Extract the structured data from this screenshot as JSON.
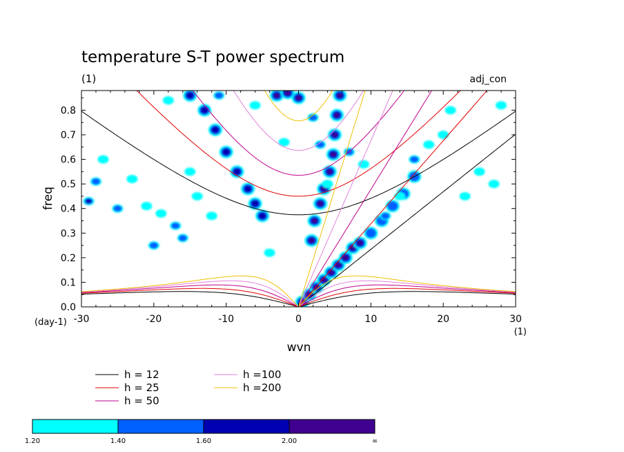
{
  "chart_data": {
    "type": "contour",
    "title": "temperature S-T power spectrum",
    "subtitle_left": "(1)",
    "subtitle_right": "adj_con",
    "xlabel": "wvn",
    "ylabel": "freq",
    "x_unit": "(1)",
    "y_unit": "(day-1)",
    "xlim": [
      -30,
      30
    ],
    "ylim": [
      0.0,
      0.88
    ],
    "xticks": [
      -30,
      -20,
      -10,
      0,
      10,
      20,
      30
    ],
    "xtick_labels": [
      "-30",
      "-20",
      "-10",
      "0",
      "10",
      "20",
      "30"
    ],
    "yticks": [
      0.0,
      0.1,
      0.2,
      0.3,
      0.4,
      0.5,
      0.6,
      0.7,
      0.8
    ],
    "ytick_labels": [
      "0.0",
      "0.1",
      "0.2",
      "0.3",
      "0.4",
      "0.5",
      "0.6",
      "0.7",
      "0.8"
    ],
    "dispersion_curves": [
      {
        "label": "h = 12",
        "color": "#000000",
        "h": 12
      },
      {
        "label": "h = 25",
        "color": "#e00000",
        "h": 25
      },
      {
        "label": "h = 50",
        "color": "#c0008c",
        "h": 50
      },
      {
        "label": "h =100",
        "color": "#e080d8",
        "h": 100
      },
      {
        "label": "h =200",
        "color": "#f0c000",
        "h": 200
      }
    ],
    "colorbar": {
      "levels": [
        "1.20",
        "1.40",
        "1.60",
        "2.00",
        "∞"
      ],
      "colors": [
        "#00ffff",
        "#0060ff",
        "#0000b0",
        "#400090"
      ]
    },
    "power_regions": [
      {
        "name": "kelvin-band",
        "points": [
          [
            0.5,
            0.02
          ],
          [
            1.5,
            0.05
          ],
          [
            2.5,
            0.08
          ],
          [
            3.5,
            0.11
          ],
          [
            4.5,
            0.14
          ],
          [
            5.5,
            0.17
          ],
          [
            6.5,
            0.2
          ],
          [
            7.5,
            0.24
          ],
          [
            8.5,
            0.26
          ]
        ],
        "level": 3
      },
      {
        "name": "mrg-column",
        "points": [
          [
            1.8,
            0.27
          ],
          [
            2.2,
            0.35
          ],
          [
            3.0,
            0.42
          ],
          [
            3.5,
            0.48
          ],
          [
            4.3,
            0.55
          ],
          [
            4.8,
            0.62
          ],
          [
            5.0,
            0.7
          ],
          [
            5.3,
            0.78
          ],
          [
            5.7,
            0.86
          ]
        ],
        "level": 3
      },
      {
        "name": "ig-west-band",
        "points": [
          [
            -15,
            0.86
          ],
          [
            -13,
            0.8
          ],
          [
            -11.5,
            0.72
          ],
          [
            -10,
            0.63
          ],
          [
            -8.5,
            0.55
          ],
          [
            -7,
            0.48
          ],
          [
            -6,
            0.42
          ],
          [
            -5,
            0.37
          ]
        ],
        "level": 2
      },
      {
        "name": "east-band",
        "points": [
          [
            10,
            0.3
          ],
          [
            11.5,
            0.35
          ],
          [
            13,
            0.41
          ],
          [
            14.5,
            0.46
          ],
          [
            16,
            0.53
          ]
        ],
        "level": 1
      },
      {
        "name": "top-center",
        "points": [
          [
            -3,
            0.86
          ],
          [
            -1.5,
            0.87
          ],
          [
            0,
            0.85
          ]
        ],
        "level": 3
      }
    ]
  }
}
